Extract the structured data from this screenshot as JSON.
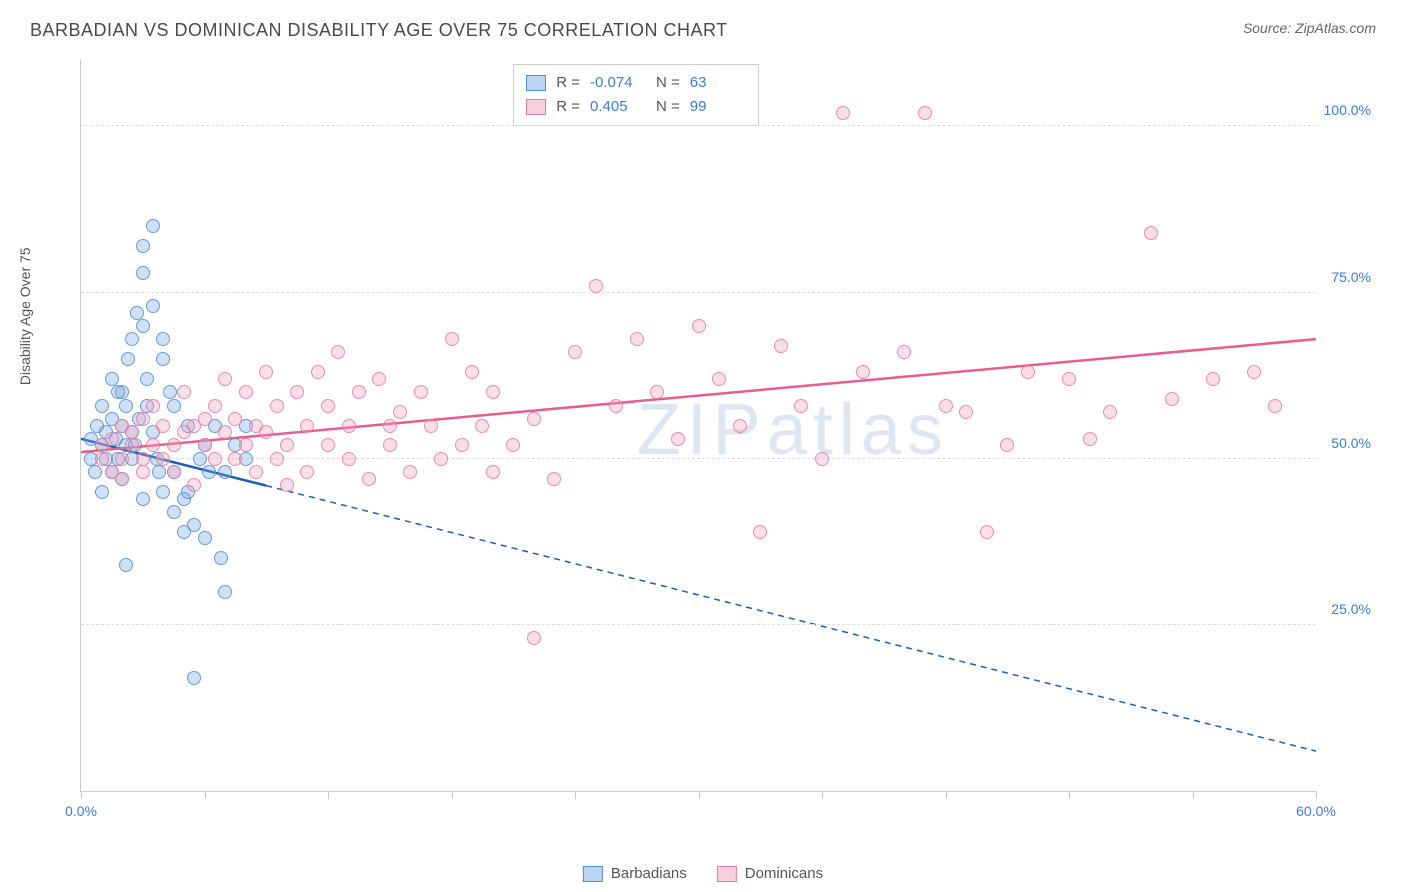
{
  "header": {
    "title": "BARBADIAN VS DOMINICAN DISABILITY AGE OVER 75 CORRELATION CHART",
    "source": "Source: ZipAtlas.com"
  },
  "chart": {
    "type": "scatter",
    "ylabel": "Disability Age Over 75",
    "watermark": "ZIPatlas",
    "background_color": "#ffffff",
    "grid_color": "#dddddd",
    "axis_color": "#cccccc",
    "xlim": [
      0,
      60
    ],
    "ylim": [
      0,
      110
    ],
    "yticks": [
      25,
      50,
      75,
      100
    ],
    "ytick_labels": [
      "25.0%",
      "50.0%",
      "75.0%",
      "100.0%"
    ],
    "xtick_positions": [
      0,
      6,
      12,
      18,
      24,
      30,
      36,
      42,
      48,
      54,
      60
    ],
    "xtick_labels": {
      "0": "0.0%",
      "60": "60.0%"
    },
    "series": [
      {
        "name": "Barbadians",
        "color_fill": "rgba(120,170,230,0.35)",
        "color_stroke": "#5090d0",
        "marker_size": 14,
        "R": "-0.074",
        "N": "63",
        "trend": {
          "x1": 0,
          "y1": 53,
          "x2": 60,
          "y2": 6,
          "solid_until_x": 9,
          "color": "#1e5fb4",
          "width": 2.5
        },
        "points": [
          [
            0.5,
            53
          ],
          [
            0.5,
            50
          ],
          [
            0.7,
            48
          ],
          [
            0.8,
            55
          ],
          [
            1,
            52
          ],
          [
            1,
            58
          ],
          [
            1,
            45
          ],
          [
            1.2,
            50
          ],
          [
            1.2,
            54
          ],
          [
            1.5,
            56
          ],
          [
            1.5,
            48
          ],
          [
            1.5,
            62
          ],
          [
            1.7,
            53
          ],
          [
            1.8,
            50
          ],
          [
            2,
            60
          ],
          [
            2,
            55
          ],
          [
            2,
            47
          ],
          [
            2.2,
            52
          ],
          [
            2.2,
            58
          ],
          [
            2.3,
            65
          ],
          [
            2.5,
            68
          ],
          [
            2.5,
            54
          ],
          [
            2.5,
            50
          ],
          [
            2.7,
            72
          ],
          [
            2.8,
            56
          ],
          [
            3,
            82
          ],
          [
            3,
            78
          ],
          [
            3,
            70
          ],
          [
            3.2,
            62
          ],
          [
            3.2,
            58
          ],
          [
            3.5,
            73
          ],
          [
            3.5,
            85
          ],
          [
            3.5,
            54
          ],
          [
            3.7,
            50
          ],
          [
            4,
            65
          ],
          [
            4,
            68
          ],
          [
            4,
            45
          ],
          [
            4.3,
            60
          ],
          [
            4.5,
            48
          ],
          [
            4.5,
            42
          ],
          [
            5,
            39
          ],
          [
            5,
            44
          ],
          [
            5.2,
            55
          ],
          [
            5.5,
            40
          ],
          [
            5.8,
            50
          ],
          [
            6,
            52
          ],
          [
            6,
            38
          ],
          [
            6.5,
            55
          ],
          [
            6.8,
            35
          ],
          [
            7,
            30
          ],
          [
            7,
            48
          ],
          [
            7.5,
            52
          ],
          [
            8,
            55
          ],
          [
            8,
            50
          ],
          [
            2.2,
            34
          ],
          [
            3,
            44
          ],
          [
            3.8,
            48
          ],
          [
            4.5,
            58
          ],
          [
            1.8,
            60
          ],
          [
            2.6,
            52
          ],
          [
            5.2,
            45
          ],
          [
            6.2,
            48
          ],
          [
            5.5,
            17
          ]
        ]
      },
      {
        "name": "Dominicans",
        "color_fill": "rgba(240,160,190,0.35)",
        "color_stroke": "#e080a0",
        "marker_size": 14,
        "R": "0.405",
        "N": "99",
        "trend": {
          "x1": 0,
          "y1": 51,
          "x2": 60,
          "y2": 68,
          "solid_until_x": 60,
          "color": "#e85d8a",
          "width": 2.5
        },
        "points": [
          [
            1,
            50
          ],
          [
            1,
            52
          ],
          [
            1.5,
            48
          ],
          [
            1.5,
            53
          ],
          [
            2,
            55
          ],
          [
            2,
            50
          ],
          [
            2,
            47
          ],
          [
            2.5,
            52
          ],
          [
            2.5,
            54
          ],
          [
            3,
            56
          ],
          [
            3,
            50
          ],
          [
            3,
            48
          ],
          [
            3.5,
            52
          ],
          [
            3.5,
            58
          ],
          [
            4,
            55
          ],
          [
            4,
            50
          ],
          [
            4.5,
            52
          ],
          [
            4.5,
            48
          ],
          [
            5,
            54
          ],
          [
            5,
            60
          ],
          [
            5.5,
            55
          ],
          [
            5.5,
            46
          ],
          [
            6,
            52
          ],
          [
            6,
            56
          ],
          [
            6.5,
            58
          ],
          [
            6.5,
            50
          ],
          [
            7,
            54
          ],
          [
            7,
            62
          ],
          [
            7.5,
            56
          ],
          [
            7.5,
            50
          ],
          [
            8,
            60
          ],
          [
            8,
            52
          ],
          [
            8.5,
            55
          ],
          [
            8.5,
            48
          ],
          [
            9,
            63
          ],
          [
            9,
            54
          ],
          [
            9.5,
            50
          ],
          [
            9.5,
            58
          ],
          [
            10,
            52
          ],
          [
            10,
            46
          ],
          [
            10.5,
            60
          ],
          [
            11,
            55
          ],
          [
            11,
            48
          ],
          [
            11.5,
            63
          ],
          [
            12,
            52
          ],
          [
            12,
            58
          ],
          [
            12.5,
            66
          ],
          [
            13,
            50
          ],
          [
            13,
            55
          ],
          [
            13.5,
            60
          ],
          [
            14,
            47
          ],
          [
            14.5,
            62
          ],
          [
            15,
            52
          ],
          [
            15,
            55
          ],
          [
            15.5,
            57
          ],
          [
            16,
            48
          ],
          [
            16.5,
            60
          ],
          [
            17,
            55
          ],
          [
            17.5,
            50
          ],
          [
            18,
            68
          ],
          [
            18.5,
            52
          ],
          [
            19,
            63
          ],
          [
            19.5,
            55
          ],
          [
            20,
            60
          ],
          [
            20,
            48
          ],
          [
            21,
            52
          ],
          [
            22,
            56
          ],
          [
            22,
            23
          ],
          [
            23,
            47
          ],
          [
            24,
            66
          ],
          [
            25,
            76
          ],
          [
            26,
            58
          ],
          [
            27,
            68
          ],
          [
            28,
            60
          ],
          [
            29,
            53
          ],
          [
            30,
            70
          ],
          [
            31,
            62
          ],
          [
            32,
            55
          ],
          [
            33,
            39
          ],
          [
            34,
            67
          ],
          [
            35,
            58
          ],
          [
            36,
            50
          ],
          [
            37,
            102
          ],
          [
            38,
            63
          ],
          [
            40,
            66
          ],
          [
            41,
            102
          ],
          [
            42,
            58
          ],
          [
            43,
            57
          ],
          [
            44,
            39
          ],
          [
            45,
            52
          ],
          [
            46,
            63
          ],
          [
            48,
            62
          ],
          [
            49,
            53
          ],
          [
            50,
            57
          ],
          [
            52,
            84
          ],
          [
            53,
            59
          ],
          [
            55,
            62
          ],
          [
            57,
            63
          ],
          [
            58,
            58
          ]
        ]
      }
    ],
    "legend_bottom": [
      {
        "label": "Barbadians",
        "swatch": "blue"
      },
      {
        "label": "Dominicans",
        "swatch": "pink"
      }
    ]
  }
}
